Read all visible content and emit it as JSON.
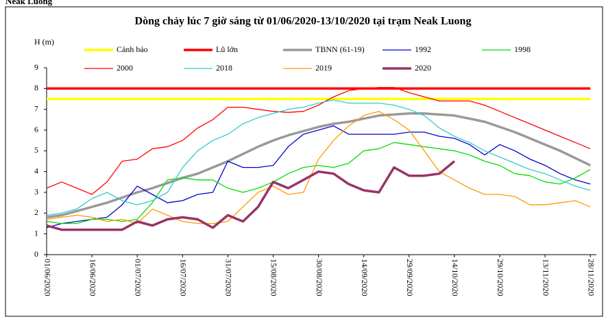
{
  "chart_data": {
    "type": "line",
    "header_text": "Neak Luong",
    "title": "Dòng chảy lúc 7 giờ sáng từ 01/06/2020-13/10/2020 tại trạm Neak Luong",
    "y_label": "H (m)",
    "x": [
      "01/06/2020",
      "06/06/2020",
      "11/06/2020",
      "16/06/2020",
      "21/06/2020",
      "26/06/2020",
      "01/07/2020",
      "06/07/2020",
      "11/07/2020",
      "16/07/2020",
      "21/07/2020",
      "26/07/2020",
      "31/07/2020",
      "05/08/2020",
      "10/08/2020",
      "15/08/2020",
      "20/08/2020",
      "25/08/2020",
      "30/08/2020",
      "04/09/2020",
      "09/09/2020",
      "14/09/2020",
      "19/09/2020",
      "24/09/2020",
      "29/09/2020",
      "04/10/2020",
      "09/10/2020",
      "14/10/2020",
      "19/10/2020",
      "24/10/2020",
      "29/10/2020",
      "03/11/2020",
      "08/11/2020",
      "13/11/2020",
      "18/11/2020",
      "23/11/2020",
      "28/11/2020"
    ],
    "xlim": [
      "01/06/2020",
      "30/11/2020"
    ],
    "xticks": [
      "01/06/2020",
      "16/06/2020",
      "01/07/2020",
      "16/07/2020",
      "31/07/2020",
      "15/08/2020",
      "30/08/2020",
      "14/09/2020",
      "29/09/2020",
      "14/10/2020",
      "29/10/2020",
      "13/11/2020",
      "28/11/2020"
    ],
    "ylim": [
      0,
      9
    ],
    "yticks": [
      0,
      1,
      2,
      3,
      4,
      5,
      6,
      7,
      8,
      9
    ],
    "series": [
      {
        "name": "Cảnh báo",
        "color": "#ffff00",
        "width": 3.5,
        "values": [
          7.5,
          7.5,
          7.5,
          7.5,
          7.5,
          7.5,
          7.5,
          7.5,
          7.5,
          7.5,
          7.5,
          7.5,
          7.5,
          7.5,
          7.5,
          7.5,
          7.5,
          7.5,
          7.5,
          7.5,
          7.5,
          7.5,
          7.5,
          7.5,
          7.5,
          7.5,
          7.5,
          7.5,
          7.5,
          7.5,
          7.5,
          7.5,
          7.5,
          7.5,
          7.5,
          7.5,
          7.5
        ]
      },
      {
        "name": "Lũ lớn",
        "color": "#ff0000",
        "width": 3.5,
        "values": [
          8,
          8,
          8,
          8,
          8,
          8,
          8,
          8,
          8,
          8,
          8,
          8,
          8,
          8,
          8,
          8,
          8,
          8,
          8,
          8,
          8,
          8,
          8,
          8,
          8,
          8,
          8,
          8,
          8,
          8,
          8,
          8,
          8,
          8,
          8,
          8,
          8
        ]
      },
      {
        "name": "TBNN (61-19)",
        "color": "#999999",
        "width": 3.5,
        "values": [
          1.8,
          1.9,
          2.1,
          2.3,
          2.5,
          2.75,
          3.0,
          3.2,
          3.45,
          3.7,
          3.9,
          4.2,
          4.5,
          4.85,
          5.2,
          5.5,
          5.75,
          5.95,
          6.15,
          6.3,
          6.4,
          6.55,
          6.7,
          6.75,
          6.8,
          6.8,
          6.75,
          6.7,
          6.55,
          6.4,
          6.15,
          5.9,
          5.6,
          5.3,
          5.0,
          4.65,
          4.3
        ]
      },
      {
        "name": "1992",
        "color": "#0000cc",
        "width": 1.3,
        "values": [
          1.3,
          1.5,
          1.6,
          1.7,
          1.8,
          2.4,
          3.3,
          2.9,
          2.5,
          2.6,
          2.9,
          3.0,
          4.5,
          4.2,
          4.2,
          4.3,
          5.2,
          5.8,
          6.0,
          6.2,
          5.8,
          5.8,
          5.8,
          5.8,
          5.9,
          5.9,
          5.7,
          5.6,
          5.3,
          4.8,
          5.3,
          5.0,
          4.6,
          4.3,
          3.9,
          3.6,
          3.4
        ]
      },
      {
        "name": "1998",
        "color": "#00dd00",
        "width": 1.3,
        "values": [
          1.6,
          1.5,
          1.5,
          1.7,
          1.7,
          1.6,
          1.7,
          2.5,
          3.6,
          3.7,
          3.6,
          3.6,
          3.2,
          3.0,
          3.2,
          3.5,
          3.9,
          4.2,
          4.3,
          4.2,
          4.4,
          5.0,
          5.1,
          5.4,
          5.3,
          5.2,
          5.1,
          5.0,
          4.8,
          4.5,
          4.3,
          3.9,
          3.8,
          3.5,
          3.4,
          3.7,
          4.1
        ]
      },
      {
        "name": "2000",
        "color": "#ff0000",
        "width": 1.3,
        "values": [
          3.2,
          3.5,
          3.2,
          2.9,
          3.5,
          4.5,
          4.6,
          5.1,
          5.2,
          5.5,
          6.1,
          6.5,
          7.1,
          7.1,
          7.0,
          6.9,
          6.85,
          6.9,
          7.2,
          7.6,
          7.9,
          8.0,
          8.05,
          8.05,
          7.8,
          7.6,
          7.4,
          7.4,
          7.4,
          7.2,
          6.9,
          6.6,
          6.3,
          6.0,
          5.7,
          5.4,
          5.1
        ]
      },
      {
        "name": "2018",
        "color": "#33cccc",
        "width": 1.3,
        "values": [
          1.9,
          2.0,
          2.2,
          2.7,
          3.0,
          2.6,
          2.4,
          2.6,
          3.0,
          4.2,
          5.0,
          5.5,
          5.8,
          6.3,
          6.6,
          6.8,
          7.0,
          7.1,
          7.3,
          7.45,
          7.3,
          7.3,
          7.3,
          7.2,
          7.0,
          6.7,
          6.1,
          5.7,
          5.4,
          5.0,
          4.7,
          4.4,
          4.1,
          3.9,
          3.6,
          3.3,
          3.1
        ]
      },
      {
        "name": "2019",
        "color": "#ff9900",
        "width": 1.3,
        "values": [
          1.7,
          1.8,
          1.9,
          1.8,
          1.6,
          1.7,
          1.5,
          2.2,
          1.9,
          1.6,
          1.5,
          1.5,
          1.6,
          2.3,
          3.0,
          3.3,
          2.9,
          3.0,
          4.6,
          5.5,
          6.2,
          6.7,
          6.9,
          6.5,
          6.0,
          5.0,
          4.0,
          3.6,
          3.2,
          2.9,
          2.9,
          2.8,
          2.4,
          2.4,
          2.5,
          2.6,
          2.3
        ]
      },
      {
        "name": "2020",
        "color": "#993366",
        "width": 3.5,
        "values": [
          1.4,
          1.2,
          1.2,
          1.2,
          1.2,
          1.2,
          1.6,
          1.4,
          1.7,
          1.8,
          1.7,
          1.3,
          1.9,
          1.6,
          2.3,
          3.5,
          3.2,
          3.6,
          4.0,
          3.9,
          3.4,
          3.1,
          3.0,
          4.2,
          3.8,
          3.8,
          3.9,
          4.5,
          null,
          null,
          null,
          null,
          null,
          null,
          null,
          null,
          null
        ]
      }
    ]
  }
}
